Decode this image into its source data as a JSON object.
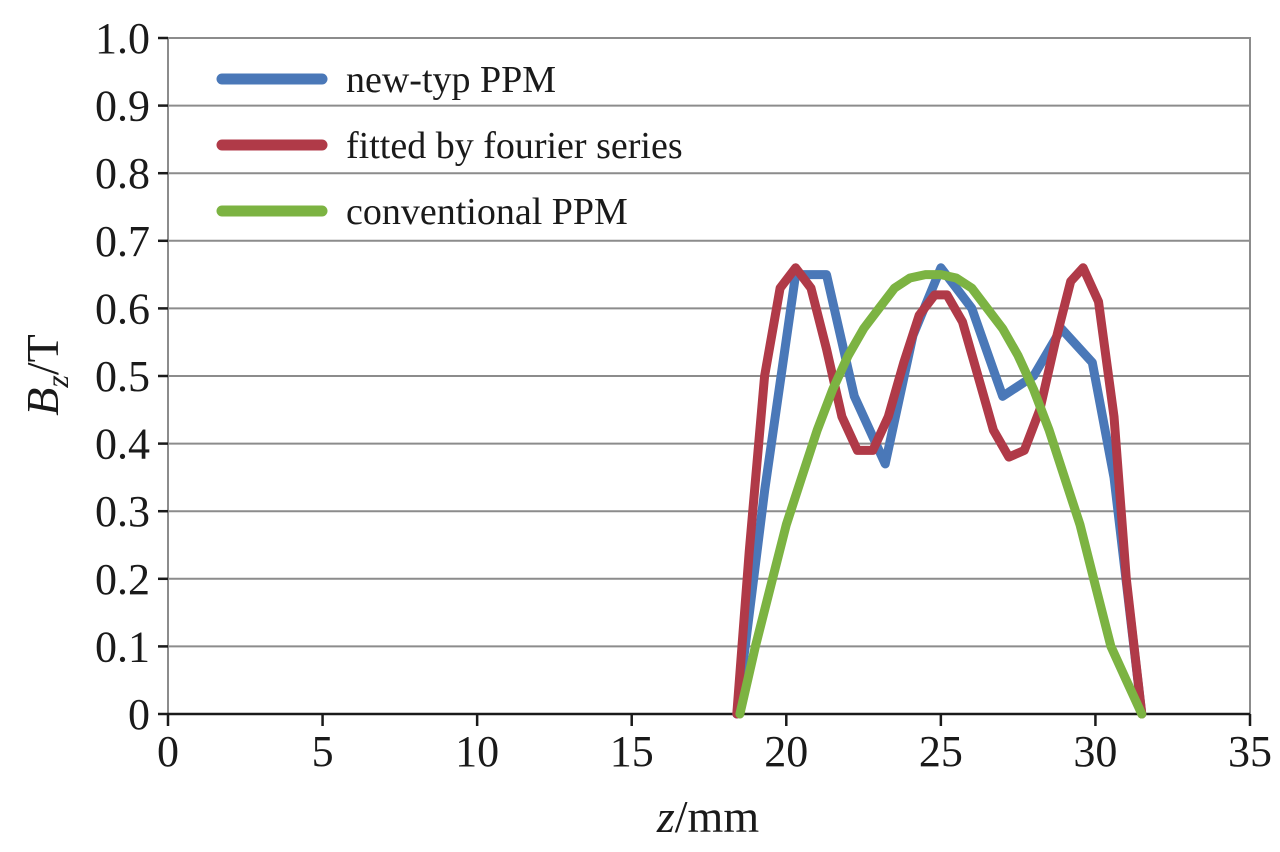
{
  "chart_data": {
    "type": "line",
    "title": "",
    "xlabel": {
      "var": "z",
      "unit": "/mm"
    },
    "ylabel": {
      "var": "B",
      "sub": "z",
      "unit": "/T"
    },
    "xlim": [
      0,
      35
    ],
    "ylim": [
      0,
      1.0
    ],
    "xticks": [
      0,
      5,
      10,
      15,
      20,
      25,
      30,
      35
    ],
    "yticks": [
      0,
      0.1,
      0.2,
      0.3,
      0.4,
      0.5,
      0.6,
      0.7,
      0.8,
      0.9,
      1.0
    ],
    "xtick_labels": [
      "0",
      "5",
      "10",
      "15",
      "20",
      "25",
      "30",
      "35"
    ],
    "ytick_labels": [
      "0",
      "0.1",
      "0.2",
      "0.3",
      "0.4",
      "0.5",
      "0.6",
      "0.7",
      "0.8",
      "0.9",
      "1.0"
    ],
    "grid": "horizontal",
    "legend_position": "top-left",
    "series": [
      {
        "name": "new-typ PPM",
        "color": "#4a78b8",
        "x": [
          18.4,
          19.3,
          20.3,
          20.8,
          21.3,
          22.2,
          23.2,
          24.1,
          25.0,
          26.0,
          27.0,
          28.0,
          28.9,
          29.9,
          30.6,
          31.5
        ],
        "y": [
          0.0,
          0.33,
          0.65,
          0.65,
          0.65,
          0.47,
          0.37,
          0.56,
          0.66,
          0.6,
          0.47,
          0.5,
          0.57,
          0.52,
          0.35,
          0.0
        ]
      },
      {
        "name": "fitted by fourier series",
        "color": "#b03a48",
        "x": [
          18.4,
          18.8,
          19.3,
          19.8,
          20.3,
          20.8,
          21.3,
          21.8,
          22.3,
          22.8,
          23.3,
          23.8,
          24.3,
          24.8,
          25.2,
          25.7,
          26.2,
          26.7,
          27.2,
          27.7,
          28.2,
          28.7,
          29.2,
          29.6,
          30.1,
          30.6,
          31.0,
          31.5
        ],
        "y": [
          0.0,
          0.24,
          0.5,
          0.63,
          0.66,
          0.63,
          0.54,
          0.44,
          0.39,
          0.39,
          0.44,
          0.52,
          0.59,
          0.62,
          0.62,
          0.58,
          0.5,
          0.42,
          0.38,
          0.39,
          0.45,
          0.55,
          0.64,
          0.66,
          0.61,
          0.44,
          0.2,
          0.0
        ]
      },
      {
        "name": "conventional PPM",
        "color": "#7cb342",
        "x": [
          18.5,
          19.0,
          19.5,
          20.0,
          20.5,
          21.0,
          21.5,
          22.0,
          22.5,
          23.0,
          23.5,
          24.0,
          24.5,
          25.0,
          25.5,
          26.0,
          26.5,
          27.0,
          27.5,
          28.0,
          28.5,
          29.0,
          29.5,
          30.0,
          30.5,
          31.0,
          31.5
        ],
        "y": [
          0.0,
          0.1,
          0.19,
          0.28,
          0.35,
          0.42,
          0.48,
          0.53,
          0.57,
          0.6,
          0.63,
          0.645,
          0.65,
          0.65,
          0.645,
          0.63,
          0.6,
          0.57,
          0.53,
          0.48,
          0.42,
          0.35,
          0.28,
          0.19,
          0.1,
          0.05,
          0.0
        ]
      }
    ]
  }
}
